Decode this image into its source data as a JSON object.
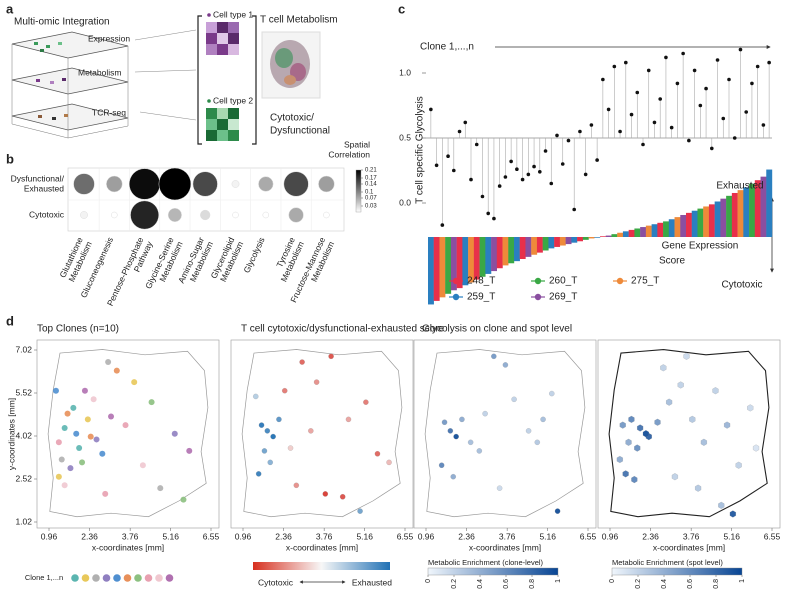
{
  "panel_labels": [
    "a",
    "b",
    "c",
    "d"
  ],
  "diagram": {
    "title": "Multi-omic Integration",
    "layers": [
      "Expression",
      "Metabolism",
      "TCR-seq"
    ],
    "cell_types": [
      "Cell type 1",
      "Cell type 2"
    ],
    "metabolism_title": "T cell Metabolism",
    "metabolism_label": [
      "Cytotoxic/",
      "Dysfunctional"
    ]
  },
  "chart_data": [
    {
      "type": "bubble_matrix",
      "rows": [
        [
          "Dysfunctional/",
          "Exhausted"
        ],
        [
          "Cytotoxic"
        ]
      ],
      "columns": [
        [
          "Glutathione",
          "Metabolism"
        ],
        [
          "Gluconeogenesis"
        ],
        [
          "Pentose-Phosphate",
          "Pathway"
        ],
        [
          "Glycine-Serine",
          "Metabolism"
        ],
        [
          "Amino-Sugar",
          "Metabolism"
        ],
        [
          "Glycerolipid",
          "Metabolism"
        ],
        [
          "Glycolysis"
        ],
        [
          "Tyrosine",
          "Metabolism"
        ],
        [
          "Fructose-Mannose",
          "Metabolism"
        ]
      ],
      "values": [
        [
          0.12,
          0.08,
          0.2,
          0.21,
          0.15,
          0.01,
          0.07,
          0.15,
          0.08
        ],
        [
          0.01,
          0,
          0.18,
          0.06,
          0.03,
          0,
          0,
          0.07,
          0
        ]
      ],
      "colorbar_title": [
        "Spatial",
        "Correlation"
      ],
      "clim": [
        0,
        0.21
      ],
      "cticks": [
        0.21,
        0.17,
        0.14,
        0.1,
        0.07,
        0.03
      ]
    },
    {
      "type": "lollipop",
      "ylabel": "T cell specific Glycolysis",
      "annotation": "Clone 1,...,n",
      "color": "#111111",
      "baseline": 0.5,
      "ylim": [
        -0.3,
        1.3
      ],
      "yticks": [
        {
          "value": 0,
          "label": "0.0"
        },
        {
          "value": 0.5,
          "label": "0.5"
        },
        {
          "value": 1,
          "label": "1.0"
        }
      ],
      "values": [
        0.72,
        0.29,
        -0.17,
        0.36,
        0.25,
        0.55,
        0.62,
        0.18,
        0.45,
        0.05,
        -0.08,
        -0.12,
        0.13,
        0.2,
        0.32,
        0.26,
        0.18,
        0.22,
        0.28,
        0.24,
        0.4,
        0.15,
        0.52,
        0.3,
        0.48,
        -0.05,
        0.55,
        0.22,
        0.6,
        0.33,
        0.95,
        0.72,
        1.05,
        0.55,
        1.08,
        0.68,
        0.85,
        0.45,
        1.02,
        0.62,
        0.8,
        1.12,
        0.58,
        0.92,
        1.15,
        0.48,
        1.02,
        0.75,
        0.88,
        0.42,
        1.1,
        0.65,
        0.95,
        0.5,
        1.18,
        0.7,
        0.92,
        1.05,
        0.6,
        1.08
      ]
    },
    {
      "type": "bar",
      "ylim": [
        -1,
        1
      ],
      "annotations": {
        "top": "Exhausted",
        "label": [
          "Gene Expression",
          "Score"
        ],
        "bottom": "Cytotoxic"
      },
      "legend": [
        {
          "name": "248_T",
          "color": "#e8304a"
        },
        {
          "name": "260_T",
          "color": "#3aa845"
        },
        {
          "name": "275_T",
          "color": "#ee8a3a"
        },
        {
          "name": "259_T",
          "color": "#2a7fc0"
        },
        {
          "name": "269_T",
          "color": "#8a4fa0"
        }
      ],
      "values": [
        -0.95,
        -0.9,
        -0.85,
        -0.8,
        -0.75,
        -0.72,
        -0.68,
        -0.64,
        -0.6,
        -0.56,
        -0.52,
        -0.48,
        -0.44,
        -0.4,
        -0.37,
        -0.34,
        -0.31,
        -0.28,
        -0.25,
        -0.22,
        -0.19,
        -0.16,
        -0.14,
        -0.12,
        -0.1,
        -0.08,
        -0.06,
        -0.04,
        -0.02,
        -0.01,
        0.01,
        0.02,
        0.04,
        0.06,
        0.08,
        0.1,
        0.12,
        0.14,
        0.16,
        0.18,
        0.2,
        0.22,
        0.25,
        0.28,
        0.31,
        0.34,
        0.37,
        0.4,
        0.43,
        0.46,
        0.5,
        0.54,
        0.58,
        0.62,
        0.66,
        0.7,
        0.75,
        0.8,
        0.85,
        0.95
      ],
      "sample": [
        "259_T",
        "248_T",
        "275_T",
        "260_T",
        "269_T",
        "248_T",
        "259_T",
        "275_T",
        "248_T",
        "260_T",
        "259_T",
        "269_T",
        "248_T",
        "275_T",
        "260_T",
        "259_T",
        "248_T",
        "269_T",
        "275_T",
        "248_T",
        "260_T",
        "259_T",
        "248_T",
        "275_T",
        "269_T",
        "259_T",
        "248_T",
        "260_T",
        "275_T",
        "259_T",
        "248_T",
        "269_T",
        "260_T",
        "275_T",
        "259_T",
        "248_T",
        "260_T",
        "269_T",
        "275_T",
        "259_T",
        "248_T",
        "260_T",
        "259_T",
        "275_T",
        "269_T",
        "248_T",
        "259_T",
        "260_T",
        "275_T",
        "248_T",
        "259_T",
        "269_T",
        "260_T",
        "248_T",
        "275_T",
        "259_T",
        "260_T",
        "248_T",
        "269_T",
        "259_T"
      ]
    },
    {
      "type": "scatter_map",
      "title": "Top Clones (n=10)",
      "xlabel": "x-coordinates [mm]",
      "ylabel": "y-coordinates [mm]",
      "xlim": [
        0.96,
        6.55
      ],
      "xticks": [
        0.96,
        2.36,
        3.76,
        5.16,
        6.55
      ],
      "ylim": [
        1.02,
        7.02
      ],
      "yticks": [
        1.02,
        2.52,
        4.02,
        5.52,
        7.02
      ],
      "legend_title": "Clone 1,...n",
      "series": [
        {
          "color": "#5bb5b0",
          "x": [
            1.5,
            2.0,
            1.8
          ],
          "y": [
            4.3,
            3.6,
            5.0
          ]
        },
        {
          "color": "#e8c85a",
          "x": [
            2.3,
            3.9,
            1.3
          ],
          "y": [
            4.6,
            5.9,
            2.6
          ]
        },
        {
          "color": "#b0b0b0",
          "x": [
            1.4,
            3.0,
            4.8
          ],
          "y": [
            3.2,
            6.6,
            2.2
          ]
        },
        {
          "color": "#8f7fc0",
          "x": [
            2.6,
            1.7,
            5.3
          ],
          "y": [
            3.9,
            2.9,
            4.1
          ]
        },
        {
          "color": "#4f8fd0",
          "x": [
            1.9,
            2.8,
            1.2
          ],
          "y": [
            4.1,
            3.4,
            5.6
          ]
        },
        {
          "color": "#e8905a",
          "x": [
            1.6,
            2.4,
            3.3
          ],
          "y": [
            4.8,
            4.0,
            6.3
          ]
        },
        {
          "color": "#8cc080",
          "x": [
            2.1,
            4.5,
            5.6
          ],
          "y": [
            3.1,
            5.2,
            1.8
          ]
        },
        {
          "color": "#e8a0b0",
          "x": [
            1.3,
            3.6,
            2.9
          ],
          "y": [
            3.8,
            4.4,
            2.0
          ]
        },
        {
          "color": "#f0c8d0",
          "x": [
            2.5,
            4.2,
            1.5
          ],
          "y": [
            5.3,
            3.0,
            2.3
          ]
        },
        {
          "color": "#b070b0",
          "x": [
            3.1,
            2.2,
            5.8
          ],
          "y": [
            4.7,
            5.6,
            3.5
          ]
        }
      ]
    },
    {
      "type": "scatter_map",
      "title": "T cell cytotoxic/dysfunctional-exhausted score",
      "xlabel": "x-coordinates [mm]",
      "xlim": [
        0.96,
        6.55
      ],
      "xticks": [
        0.96,
        2.36,
        3.76,
        5.16,
        6.55
      ],
      "ylim": [
        1.02,
        7.02
      ],
      "colormap": "red-white-blue",
      "clim": [
        -1,
        1
      ],
      "colorbar_labels": [
        "Cytotoxic",
        "Exhausted"
      ],
      "x": [
        1.6,
        1.8,
        2.0,
        1.7,
        2.2,
        1.9,
        1.5,
        2.4,
        3.0,
        3.5,
        4.0,
        4.6,
        5.2,
        5.6,
        3.8,
        2.8,
        4.4,
        6.0,
        1.4,
        2.6,
        3.3,
        5.0
      ],
      "y": [
        4.4,
        4.2,
        4.0,
        3.5,
        4.6,
        3.1,
        2.7,
        5.6,
        6.6,
        5.9,
        6.8,
        4.6,
        5.2,
        3.4,
        2.0,
        2.3,
        1.9,
        3.1,
        5.4,
        3.6,
        4.2,
        1.4
      ],
      "values": [
        0.9,
        0.8,
        0.95,
        0.6,
        0.7,
        0.5,
        0.85,
        -0.6,
        -0.7,
        -0.5,
        -0.8,
        -0.4,
        -0.6,
        -0.7,
        -0.9,
        -0.5,
        -0.8,
        -0.3,
        0.3,
        -0.2,
        -0.4,
        0.6
      ]
    },
    {
      "type": "scatter_map",
      "title": "Glycolysis on clone and spot level",
      "xlabel": "x-coordinates [mm]",
      "xlim": [
        0.96,
        6.55
      ],
      "xticks": [
        0.96,
        2.36,
        3.76,
        5.16,
        6.55
      ],
      "ylim": [
        1.02,
        7.02
      ],
      "colormap": "blues",
      "clim": [
        0,
        1
      ],
      "colorbar_title": "Metabolic Enrichment (clone-level)",
      "cticks": [
        0,
        0.2,
        0.4,
        0.6,
        0.8,
        1
      ],
      "x": [
        1.6,
        1.8,
        2.0,
        2.2,
        1.5,
        2.5,
        3.0,
        3.3,
        3.7,
        4.0,
        4.5,
        5.0,
        5.5,
        2.8,
        1.9,
        3.5,
        4.8,
        5.3
      ],
      "y": [
        4.5,
        4.2,
        4.0,
        4.6,
        3.0,
        3.8,
        4.8,
        6.8,
        6.5,
        5.3,
        4.2,
        4.6,
        1.4,
        3.5,
        2.6,
        2.2,
        3.8,
        5.5
      ],
      "values": [
        0.5,
        0.7,
        0.9,
        0.4,
        0.6,
        0.3,
        0.2,
        0.5,
        0.4,
        0.2,
        0.2,
        0.3,
        0.9,
        0.3,
        0.4,
        0.15,
        0.25,
        0.2
      ]
    },
    {
      "type": "hex_map",
      "xlabel": "x-coordinates [mm]",
      "xlim": [
        0.96,
        6.55
      ],
      "xticks": [
        0.96,
        2.36,
        3.76,
        5.16,
        6.55
      ],
      "ylim": [
        1.02,
        7.02
      ],
      "colormap": "blues",
      "clim": [
        0,
        1
      ],
      "colorbar_title": "Metabolic Enrichment (spot level)",
      "cticks": [
        0,
        0.2,
        0.4,
        0.6,
        0.8,
        1
      ],
      "x": [
        1.4,
        1.7,
        2.0,
        2.3,
        2.6,
        1.6,
        1.9,
        2.2,
        1.5,
        1.8,
        3.0,
        3.4,
        3.8,
        4.2,
        4.6,
        5.0,
        5.4,
        5.8,
        3.2,
        4.0,
        4.8,
        2.8,
        3.6,
        1.3,
        6.0,
        5.2
      ],
      "y": [
        4.4,
        4.6,
        4.3,
        4.0,
        4.5,
        3.8,
        3.6,
        4.1,
        2.7,
        2.5,
        5.2,
        5.8,
        4.6,
        3.8,
        5.6,
        4.4,
        3.0,
        5.0,
        2.6,
        2.2,
        1.6,
        6.4,
        6.8,
        3.2,
        3.6,
        1.3
      ],
      "values": [
        0.5,
        0.6,
        0.7,
        0.8,
        0.5,
        0.4,
        0.55,
        0.9,
        0.7,
        0.6,
        0.3,
        0.2,
        0.25,
        0.3,
        0.2,
        0.35,
        0.2,
        0.15,
        0.2,
        0.25,
        0.3,
        0.2,
        0.15,
        0.4,
        0.1,
        0.85
      ]
    }
  ]
}
